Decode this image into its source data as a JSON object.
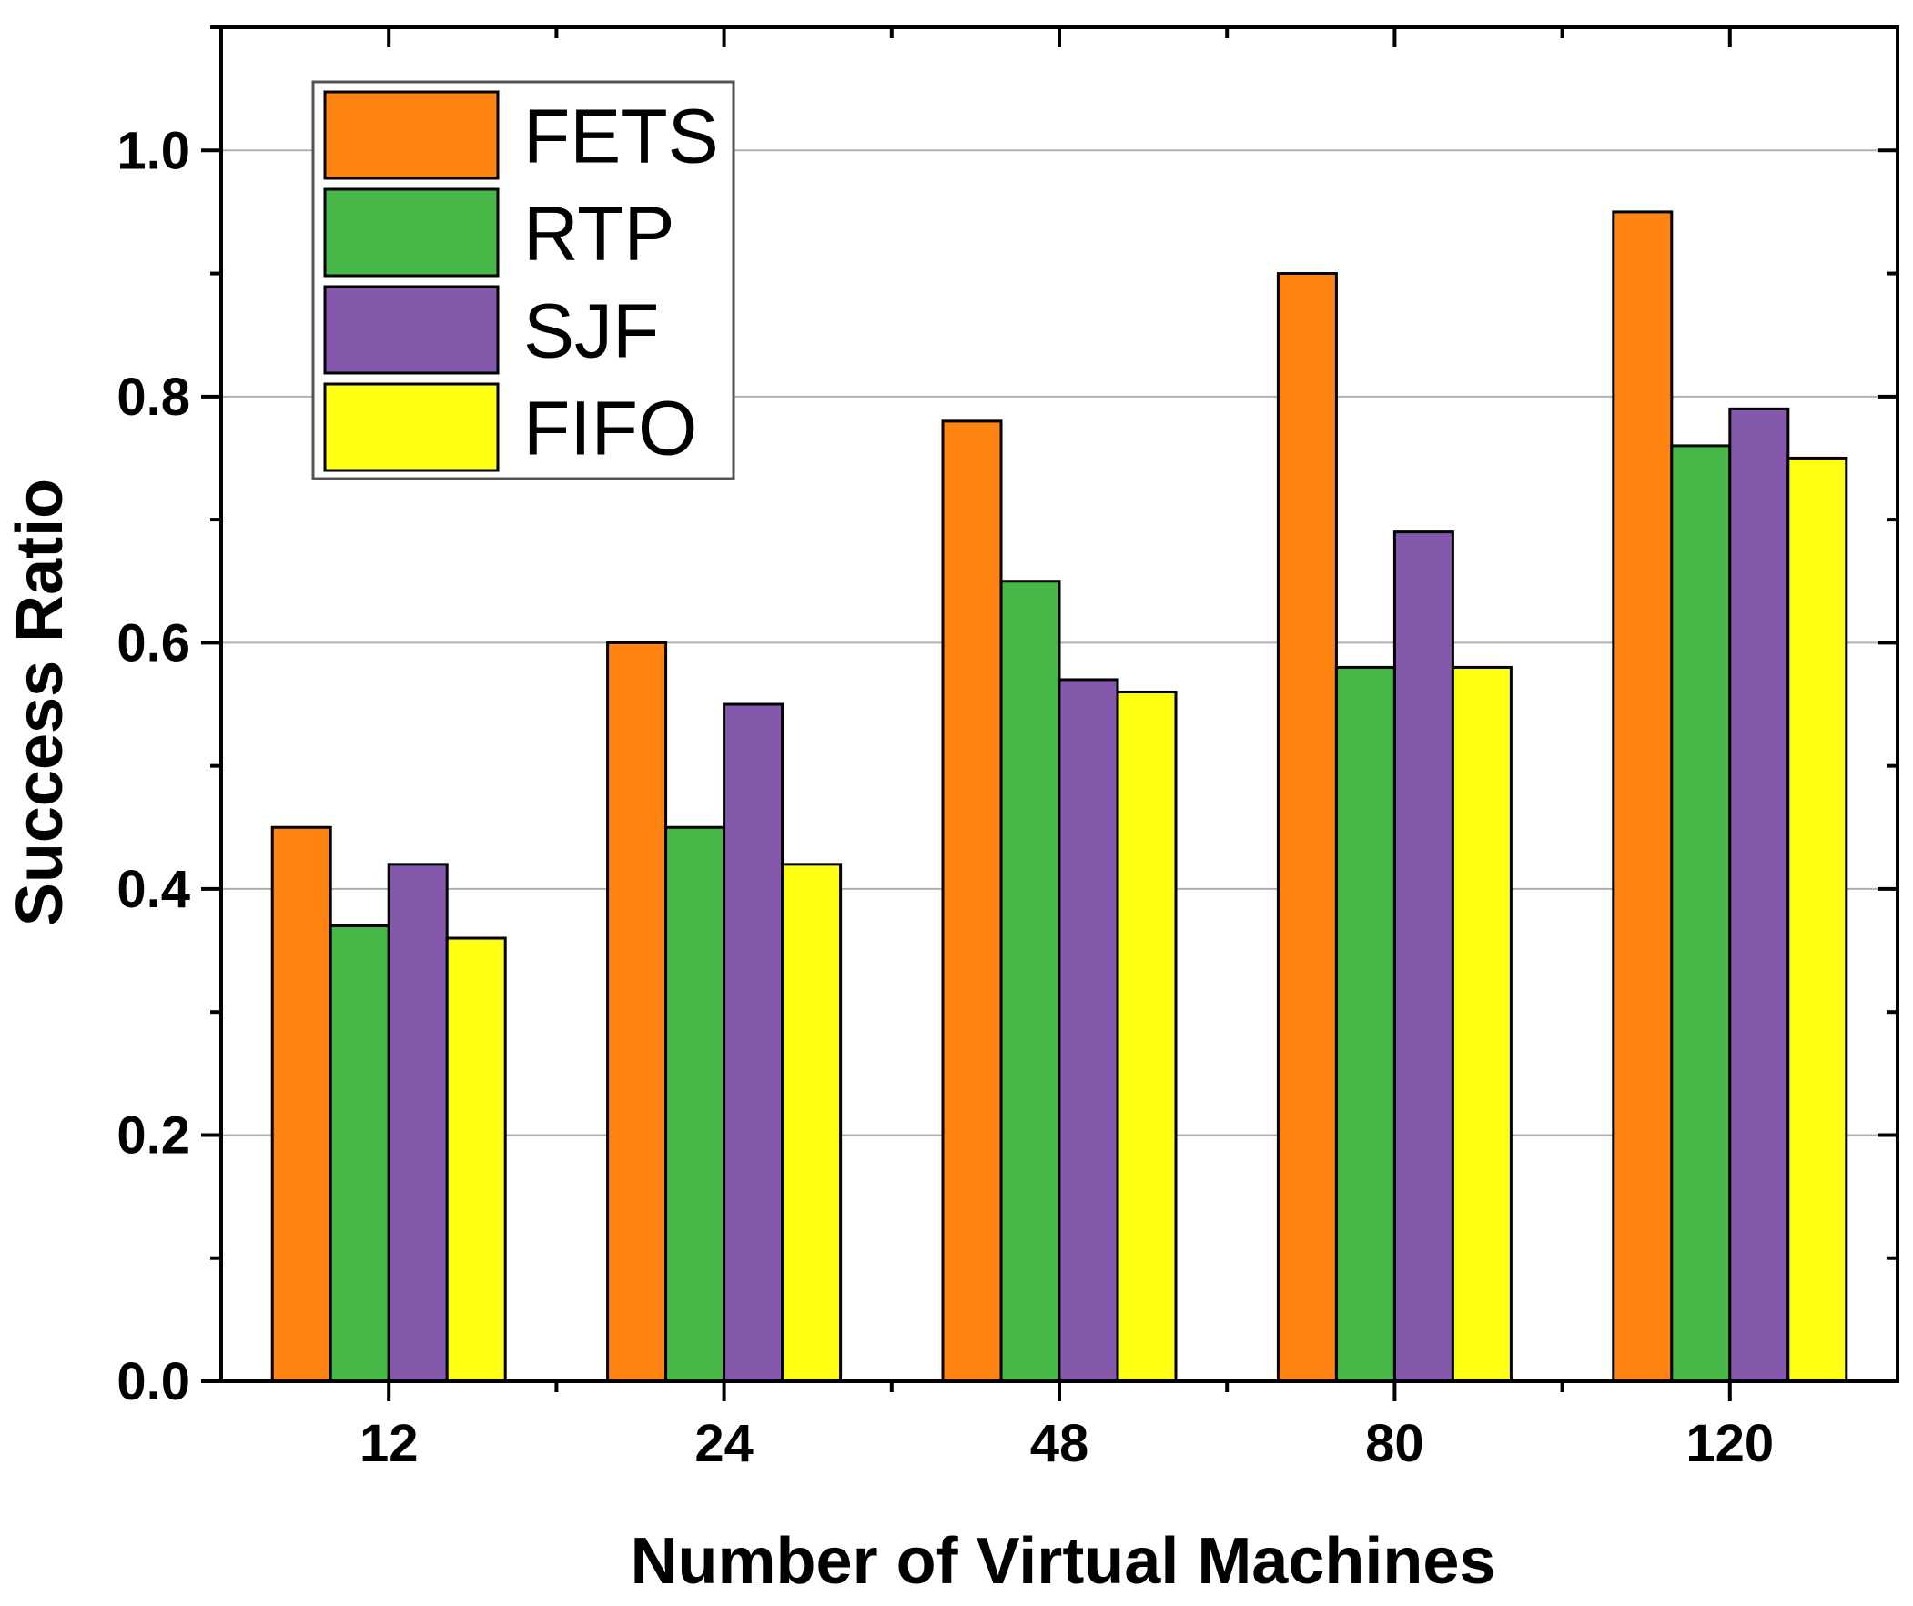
{
  "chart_data": {
    "type": "bar",
    "title": "",
    "xlabel": "Number of Virtual Machines",
    "ylabel": "Success Ratio",
    "categories": [
      "12",
      "24",
      "48",
      "80",
      "120"
    ],
    "ylim": [
      0,
      1.1
    ],
    "yticks": [
      0.0,
      0.2,
      0.4,
      0.6,
      0.8,
      1.0
    ],
    "ytick_labels": [
      "0.0",
      "0.2",
      "0.4",
      "0.6",
      "0.8",
      "1.0"
    ],
    "grid": true,
    "legend_position": "top-left",
    "series": [
      {
        "name": "FETS",
        "color": "#FF8412",
        "values": [
          0.45,
          0.6,
          0.78,
          0.9,
          0.95
        ]
      },
      {
        "name": "RTP",
        "color": "#47B847",
        "values": [
          0.37,
          0.45,
          0.65,
          0.58,
          0.76
        ]
      },
      {
        "name": "SJF",
        "color": "#8458AB",
        "values": [
          0.42,
          0.55,
          0.57,
          0.69,
          0.79
        ]
      },
      {
        "name": "FIFO",
        "color": "#FFFF14",
        "values": [
          0.36,
          0.42,
          0.56,
          0.58,
          0.75
        ]
      }
    ]
  }
}
